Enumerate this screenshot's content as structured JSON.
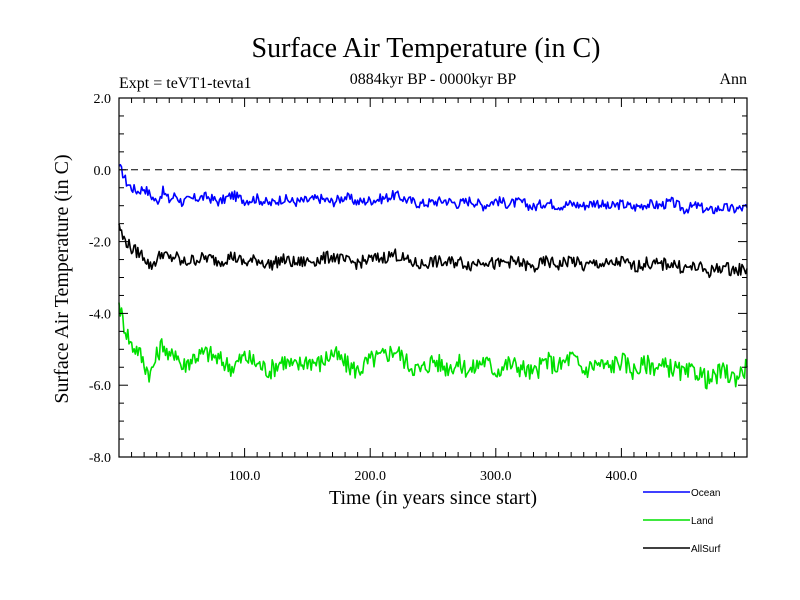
{
  "chart_data": {
    "type": "line",
    "title": "Surface Air Temperature (in C)",
    "subtitle": "0884kyr BP - 0000kyr BP",
    "left_label": "Expt = teVT1-tevta1",
    "right_label": "Ann",
    "xlabel": "Time (in years since start)",
    "ylabel": "Surface Air Temperature (in C)",
    "xlim": [
      0,
      500
    ],
    "ylim": [
      -8.0,
      2.0
    ],
    "xticks": [
      100,
      200,
      300,
      400
    ],
    "xtick_labels": [
      "100.0",
      "200.0",
      "300.0",
      "400.0"
    ],
    "yticks": [
      2.0,
      0.0,
      -2.0,
      -4.0,
      -6.0,
      -8.0
    ],
    "ytick_labels": [
      "2.0",
      "0.0",
      "-2.0",
      "-4.0",
      "-6.0",
      "-8.0"
    ],
    "reference_line": {
      "y": 0.0,
      "style": "dashed"
    },
    "legend_position": "bottom-right",
    "series": [
      {
        "name": "Ocean",
        "color": "#0000ff",
        "x": [
          0,
          3,
          6,
          10,
          15,
          20,
          25,
          30,
          35,
          40,
          45,
          50,
          60,
          70,
          80,
          90,
          100,
          110,
          120,
          130,
          140,
          150,
          160,
          170,
          180,
          190,
          200,
          210,
          220,
          230,
          240,
          250,
          260,
          270,
          280,
          290,
          300,
          310,
          320,
          330,
          340,
          350,
          360,
          370,
          380,
          390,
          400,
          410,
          420,
          430,
          440,
          450,
          460,
          470,
          480,
          490,
          500
        ],
        "values": [
          0.1,
          -0.1,
          -0.35,
          -0.5,
          -0.6,
          -0.5,
          -0.7,
          -0.9,
          -0.6,
          -0.85,
          -0.7,
          -0.9,
          -0.8,
          -0.75,
          -0.9,
          -0.7,
          -0.85,
          -0.8,
          -0.95,
          -0.8,
          -0.9,
          -0.85,
          -0.8,
          -0.9,
          -0.75,
          -0.9,
          -0.85,
          -0.8,
          -0.7,
          -0.85,
          -0.95,
          -0.9,
          -0.85,
          -0.95,
          -0.85,
          -1.0,
          -0.85,
          -0.95,
          -0.9,
          -1.05,
          -0.9,
          -1.0,
          -0.95,
          -1.0,
          -0.9,
          -1.05,
          -0.95,
          -1.05,
          -0.95,
          -1.0,
          -0.9,
          -1.1,
          -1.0,
          -1.15,
          -1.05,
          -1.1,
          -1.05
        ]
      },
      {
        "name": "Land",
        "color": "#00e000",
        "x": [
          0,
          3,
          6,
          10,
          15,
          20,
          25,
          30,
          35,
          40,
          45,
          50,
          60,
          70,
          80,
          90,
          100,
          110,
          120,
          130,
          140,
          150,
          160,
          170,
          180,
          190,
          200,
          210,
          220,
          230,
          240,
          250,
          260,
          270,
          280,
          290,
          300,
          310,
          320,
          330,
          340,
          350,
          360,
          370,
          380,
          390,
          400,
          410,
          420,
          430,
          440,
          450,
          460,
          470,
          480,
          490,
          500
        ],
        "values": [
          -3.7,
          -4.2,
          -4.5,
          -4.9,
          -5.0,
          -5.4,
          -5.7,
          -5.2,
          -4.8,
          -5.3,
          -5.0,
          -5.5,
          -5.2,
          -5.1,
          -5.3,
          -5.5,
          -5.2,
          -5.4,
          -5.6,
          -5.3,
          -5.5,
          -5.3,
          -5.4,
          -5.1,
          -5.4,
          -5.6,
          -5.3,
          -5.2,
          -5.0,
          -5.4,
          -5.6,
          -5.3,
          -5.5,
          -5.4,
          -5.6,
          -5.3,
          -5.6,
          -5.4,
          -5.5,
          -5.7,
          -5.3,
          -5.5,
          -5.2,
          -5.6,
          -5.4,
          -5.5,
          -5.3,
          -5.6,
          -5.4,
          -5.5,
          -5.5,
          -5.7,
          -5.6,
          -5.9,
          -5.6,
          -5.8,
          -5.5
        ]
      },
      {
        "name": "AllSurf",
        "color": "#000000",
        "x": [
          0,
          3,
          6,
          10,
          15,
          20,
          25,
          30,
          35,
          40,
          45,
          50,
          60,
          70,
          80,
          90,
          100,
          110,
          120,
          130,
          140,
          150,
          160,
          170,
          180,
          190,
          200,
          210,
          220,
          230,
          240,
          250,
          260,
          270,
          280,
          290,
          300,
          310,
          320,
          330,
          340,
          350,
          360,
          370,
          380,
          390,
          400,
          410,
          420,
          430,
          440,
          450,
          460,
          470,
          480,
          490,
          500
        ],
        "values": [
          -1.5,
          -1.9,
          -2.0,
          -2.2,
          -2.3,
          -2.4,
          -2.7,
          -2.5,
          -2.3,
          -2.5,
          -2.4,
          -2.6,
          -2.5,
          -2.45,
          -2.55,
          -2.4,
          -2.6,
          -2.5,
          -2.65,
          -2.5,
          -2.6,
          -2.55,
          -2.5,
          -2.4,
          -2.55,
          -2.6,
          -2.5,
          -2.45,
          -2.35,
          -2.55,
          -2.65,
          -2.55,
          -2.6,
          -2.55,
          -2.65,
          -2.5,
          -2.65,
          -2.55,
          -2.6,
          -2.75,
          -2.55,
          -2.65,
          -2.5,
          -2.7,
          -2.6,
          -2.65,
          -2.55,
          -2.7,
          -2.6,
          -2.65,
          -2.6,
          -2.75,
          -2.7,
          -2.85,
          -2.7,
          -2.8,
          -2.75
        ]
      }
    ]
  }
}
